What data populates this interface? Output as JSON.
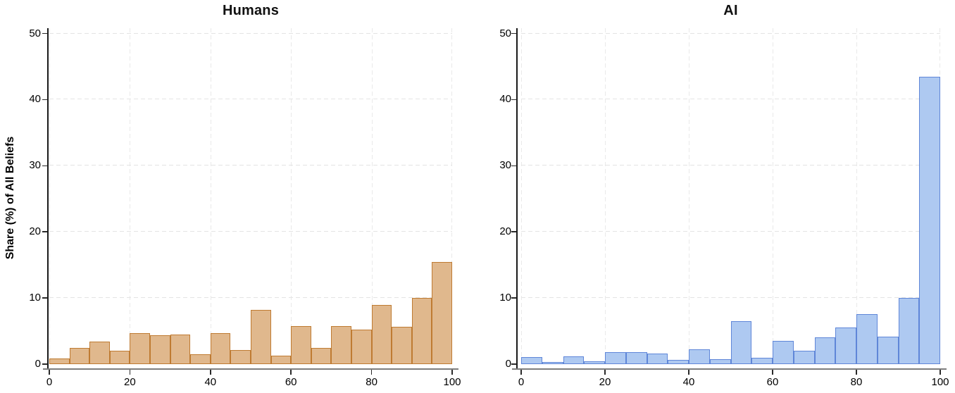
{
  "figure": {
    "ylabel": "Share (%) of All Beliefs",
    "background": "#ffffff",
    "grid_color": "#e6e6e6"
  },
  "chart_data": [
    {
      "type": "bar",
      "subtype": "histogram",
      "title": "Humans",
      "xlabel": "",
      "ylabel": "Share (%) of All Beliefs",
      "xlim": [
        0,
        100
      ],
      "ylim": [
        0,
        50
      ],
      "xticks": [
        0,
        20,
        40,
        60,
        80,
        100
      ],
      "yticks": [
        0,
        10,
        20,
        30,
        40,
        50
      ],
      "grid": true,
      "legend": "none",
      "bin_start": 0,
      "bin_width": 5,
      "values": [
        0.9,
        2.4,
        3.4,
        2.0,
        4.7,
        4.4,
        4.5,
        1.5,
        4.7,
        2.1,
        8.2,
        1.3,
        5.8,
        2.4,
        5.8,
        5.2,
        9.0,
        5.6,
        10.0,
        15.4
      ],
      "bar_fill": "#e0b88d",
      "bar_edge": "#bf7b32"
    },
    {
      "type": "bar",
      "subtype": "histogram",
      "title": "AI",
      "xlabel": "",
      "ylabel": "",
      "xlim": [
        0,
        100
      ],
      "ylim": [
        0,
        50
      ],
      "xticks": [
        0,
        20,
        40,
        60,
        80,
        100
      ],
      "yticks": [
        0,
        10,
        20,
        30,
        40,
        50
      ],
      "grid": true,
      "legend": "none",
      "bin_start": 0,
      "bin_width": 5,
      "values": [
        1.1,
        0.3,
        1.2,
        0.4,
        1.8,
        1.8,
        1.6,
        0.6,
        2.2,
        0.8,
        6.5,
        1.0,
        3.5,
        2.0,
        4.1,
        5.5,
        7.6,
        4.2,
        10.0,
        43.5
      ],
      "bar_fill": "#aec9f1",
      "bar_edge": "#5f86d8"
    }
  ]
}
